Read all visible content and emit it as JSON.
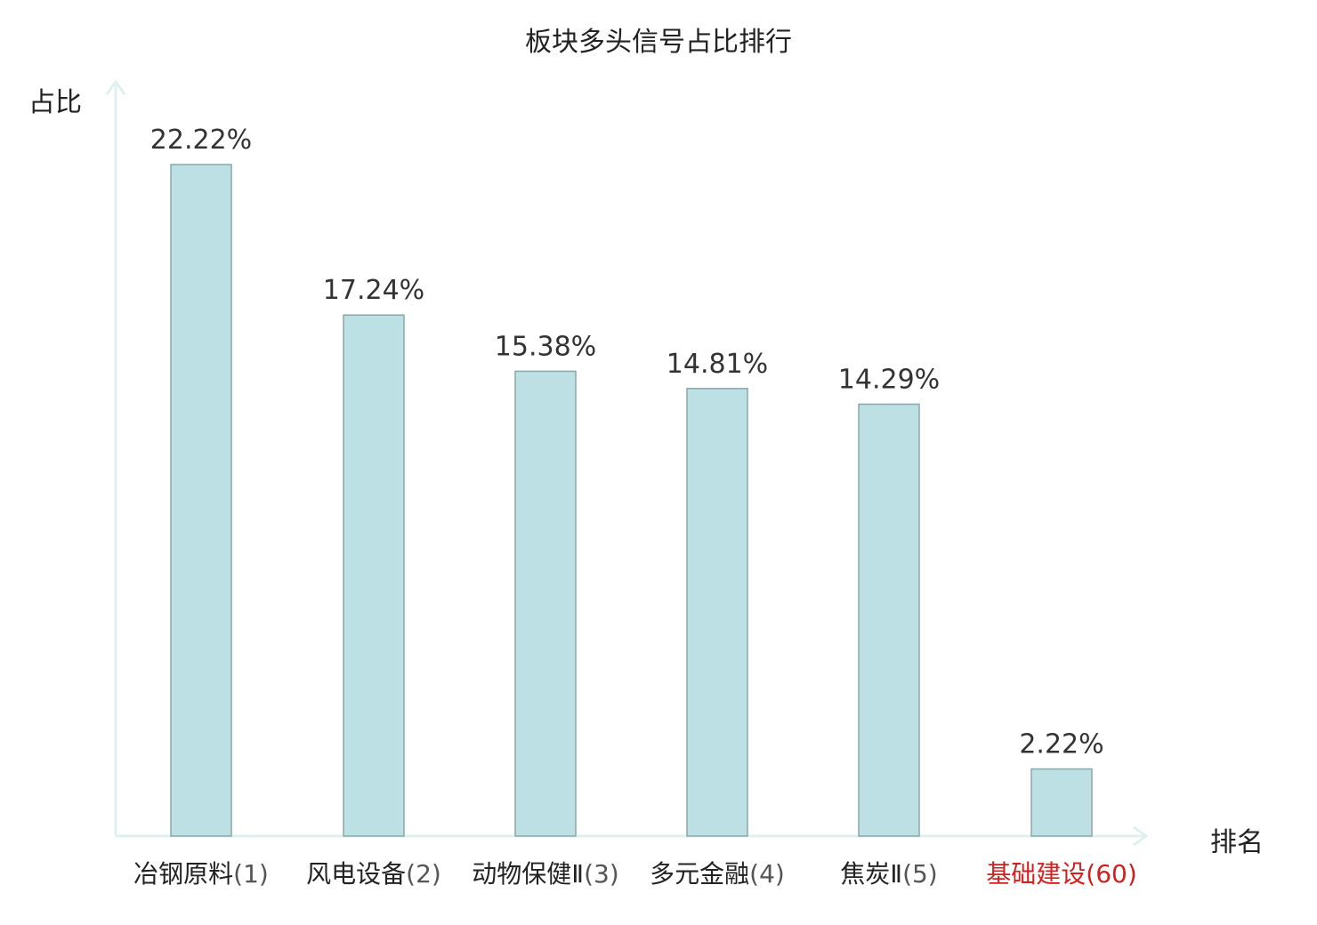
{
  "chart_data": {
    "type": "bar",
    "title": "板块多头信号占比排行",
    "ylabel": "占比",
    "xlabel": "排名",
    "categories": [
      {
        "name": "冶钢原料",
        "rank": "(1)",
        "highlight": false
      },
      {
        "name": "风电设备",
        "rank": "(2)",
        "highlight": false
      },
      {
        "name": "动物保健Ⅱ",
        "rank": "(3)",
        "highlight": false
      },
      {
        "name": "多元金融",
        "rank": "(4)",
        "highlight": false
      },
      {
        "name": "焦炭Ⅱ",
        "rank": "(5)",
        "highlight": false
      },
      {
        "name": "基础建设",
        "rank": "(60)",
        "highlight": true
      }
    ],
    "values": [
      22.22,
      17.24,
      15.38,
      14.81,
      14.29,
      2.22
    ],
    "value_labels": [
      "22.22%",
      "17.24%",
      "15.38%",
      "14.81%",
      "14.29%",
      "2.22%"
    ],
    "ylim": [
      0,
      25
    ],
    "grid": false,
    "colors": {
      "bar_fill": "#bce0e3",
      "bar_stroke": "#8aa8aa",
      "axis": "#dff1ee",
      "label_text": "#333333",
      "highlight_text": "#d41f1f"
    }
  }
}
